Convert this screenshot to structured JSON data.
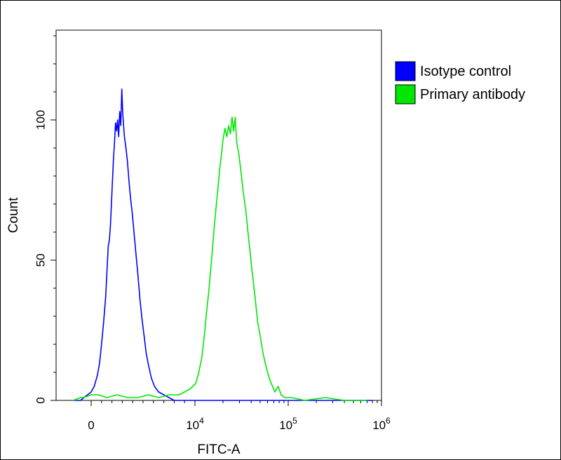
{
  "chart_data": {
    "type": "line",
    "title": "",
    "xlabel": "FITC-A",
    "ylabel": "Count",
    "x_scale": "biexponential",
    "x_ticks": [
      {
        "value": 0,
        "base": "0",
        "exp": ""
      },
      {
        "value": 10000,
        "base": "10",
        "exp": "4"
      },
      {
        "value": 100000,
        "base": "10",
        "exp": "5"
      },
      {
        "value": 1000000,
        "base": "10",
        "exp": "6"
      }
    ],
    "y_ticks": [
      {
        "value": 0,
        "label": "0"
      },
      {
        "value": 50,
        "label": "50"
      },
      {
        "value": 100,
        "label": "100"
      }
    ],
    "ylim": [
      0,
      132
    ],
    "legend_position": "right",
    "grid": false,
    "series": [
      {
        "name": "Isotype control",
        "color": "#0000ff",
        "points": [
          [
            -1500,
            0
          ],
          [
            -900,
            0
          ],
          [
            -600,
            1
          ],
          [
            -300,
            2
          ],
          [
            0,
            3
          ],
          [
            300,
            5
          ],
          [
            600,
            9
          ],
          [
            800,
            13
          ],
          [
            1000,
            20
          ],
          [
            1200,
            28
          ],
          [
            1400,
            37
          ],
          [
            1550,
            48
          ],
          [
            1650,
            55
          ],
          [
            1750,
            57
          ],
          [
            1850,
            62
          ],
          [
            1950,
            70
          ],
          [
            2050,
            78
          ],
          [
            2150,
            86
          ],
          [
            2250,
            92
          ],
          [
            2350,
            99
          ],
          [
            2450,
            96
          ],
          [
            2550,
            100
          ],
          [
            2650,
            94
          ],
          [
            2750,
            103
          ],
          [
            2850,
            98
          ],
          [
            2950,
            111
          ],
          [
            3050,
            102
          ],
          [
            3200,
            94
          ],
          [
            3350,
            90
          ],
          [
            3500,
            85
          ],
          [
            3650,
            78
          ],
          [
            3800,
            72
          ],
          [
            3950,
            67
          ],
          [
            4100,
            61
          ],
          [
            4300,
            53
          ],
          [
            4500,
            45
          ],
          [
            4700,
            36
          ],
          [
            4900,
            29
          ],
          [
            5100,
            23
          ],
          [
            5300,
            17
          ],
          [
            5500,
            13
          ],
          [
            5800,
            8
          ],
          [
            6100,
            5
          ],
          [
            6500,
            3
          ],
          [
            7000,
            2
          ],
          [
            7500,
            1
          ],
          [
            8000,
            0
          ],
          [
            9000,
            0
          ],
          [
            12000,
            0
          ],
          [
            30000,
            0
          ],
          [
            100000,
            0
          ],
          [
            400000,
            0
          ],
          [
            800000,
            0
          ]
        ]
      },
      {
        "name": "Primary antibody",
        "color": "#00e600",
        "points": [
          [
            -1500,
            0
          ],
          [
            -900,
            1
          ],
          [
            -600,
            1
          ],
          [
            0,
            2
          ],
          [
            700,
            2
          ],
          [
            1500,
            1
          ],
          [
            2500,
            2
          ],
          [
            3500,
            1
          ],
          [
            4500,
            1
          ],
          [
            5500,
            2
          ],
          [
            6500,
            1
          ],
          [
            7500,
            2
          ],
          [
            8500,
            2
          ],
          [
            9500,
            4
          ],
          [
            10200,
            6
          ],
          [
            11000,
            10
          ],
          [
            11800,
            15
          ],
          [
            12500,
            22
          ],
          [
            13200,
            30
          ],
          [
            14000,
            38
          ],
          [
            14800,
            47
          ],
          [
            15500,
            55
          ],
          [
            16200,
            63
          ],
          [
            17000,
            70
          ],
          [
            17800,
            77
          ],
          [
            18500,
            83
          ],
          [
            19300,
            88
          ],
          [
            20000,
            93
          ],
          [
            21000,
            97
          ],
          [
            22000,
            94
          ],
          [
            23000,
            98
          ],
          [
            24000,
            95
          ],
          [
            25000,
            101
          ],
          [
            26000,
            96
          ],
          [
            27000,
            101
          ],
          [
            28000,
            92
          ],
          [
            29500,
            88
          ],
          [
            31000,
            82
          ],
          [
            33000,
            74
          ],
          [
            35000,
            68
          ],
          [
            37000,
            60
          ],
          [
            39000,
            53
          ],
          [
            41000,
            46
          ],
          [
            43000,
            40
          ],
          [
            45000,
            34
          ],
          [
            47000,
            28
          ],
          [
            50000,
            23
          ],
          [
            53000,
            18
          ],
          [
            56000,
            14
          ],
          [
            60000,
            10
          ],
          [
            64000,
            7
          ],
          [
            68000,
            5
          ],
          [
            72000,
            3
          ],
          [
            78000,
            5
          ],
          [
            84000,
            2
          ],
          [
            92000,
            1
          ],
          [
            110000,
            1
          ],
          [
            150000,
            0
          ],
          [
            250000,
            1
          ],
          [
            400000,
            0
          ],
          [
            700000,
            0
          ]
        ]
      }
    ]
  }
}
